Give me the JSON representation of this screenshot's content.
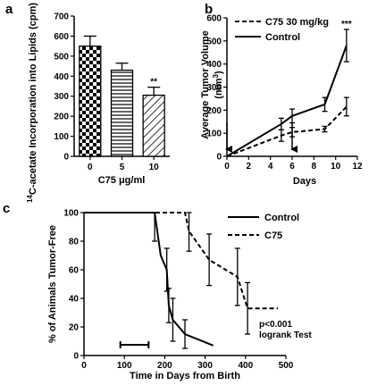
{
  "panels": {
    "a": "a",
    "b": "b",
    "c": "c"
  },
  "chart_data": [
    {
      "type": "bar",
      "panel": "a",
      "ylabel_prefix": "14",
      "ylabel_rest": "C-acetate Incorporation into Lipids (cpm)",
      "xlabel": "C75 μg/ml",
      "categories": [
        "0",
        "5",
        "10"
      ],
      "values": [
        550,
        430,
        305
      ],
      "errors": [
        50,
        35,
        40
      ],
      "patterns": [
        "checker",
        "horizontal",
        "diagonal"
      ],
      "significance": [
        "",
        "",
        "**"
      ],
      "ylim": [
        0,
        700
      ],
      "yticks": [
        "0",
        "100",
        "200",
        "300",
        "400",
        "500",
        "600",
        "700"
      ],
      "grid": false
    },
    {
      "type": "line",
      "panel": "b",
      "ylabel": "Average Tumor Volume",
      "ylabel_unit_base": "(mm",
      "ylabel_unit_sup": "3",
      "ylabel_unit_end": ")",
      "xlabel": "Days",
      "xlim": [
        0,
        12
      ],
      "ylim": [
        0,
        600
      ],
      "xticks": [
        "0",
        "2",
        "4",
        "6",
        "8",
        "10",
        "12"
      ],
      "yticks": [
        "0",
        "100",
        "200",
        "300",
        "400",
        "500",
        "600"
      ],
      "series": [
        {
          "name": "C75 30 mg/kg",
          "style": "dashed",
          "x": [
            0,
            5,
            6,
            9,
            11
          ],
          "y": [
            0,
            90,
            105,
            118,
            215
          ],
          "err": [
            0,
            25,
            20,
            12,
            40
          ]
        },
        {
          "name": "Control",
          "style": "solid",
          "x": [
            0,
            5,
            6,
            9,
            11
          ],
          "y": [
            0,
            140,
            175,
            225,
            480
          ],
          "err": [
            0,
            25,
            30,
            30,
            70
          ]
        }
      ],
      "arrows_x": [
        0,
        6
      ],
      "significance": "***",
      "significance_x": 11,
      "legend_position": "top-left",
      "grid": false
    },
    {
      "type": "line",
      "panel": "c",
      "ylabel": "% of Animals Tumor-Free",
      "xlabel": "Time in Days from Birth",
      "xlim": [
        0,
        500
      ],
      "ylim": [
        0,
        100
      ],
      "xticks": [
        "0",
        "100",
        "200",
        "300",
        "400",
        "500"
      ],
      "yticks": [
        "0",
        "20",
        "40",
        "60",
        "80",
        "100"
      ],
      "series": [
        {
          "name": "Control",
          "style": "solid",
          "x": [
            175,
            190,
            205,
            210,
            220,
            250,
            320
          ],
          "y": [
            100,
            70,
            60,
            35,
            25,
            15,
            7
          ],
          "err": [
            20,
            0,
            15,
            12,
            15,
            10,
            0
          ]
        },
        {
          "name": "C75",
          "style": "dashed",
          "x": [
            175,
            250,
            260,
            310,
            380,
            405,
            480
          ],
          "y": [
            100,
            100,
            87,
            67,
            55,
            33,
            33
          ],
          "err": [
            0,
            0,
            14,
            18,
            20,
            18,
            0
          ]
        }
      ],
      "treatment_bar": [
        90,
        160
      ],
      "annotation_line1": "p<0.001",
      "annotation_line2": "logrank Test",
      "legend_position": "top-right",
      "grid": false
    }
  ]
}
